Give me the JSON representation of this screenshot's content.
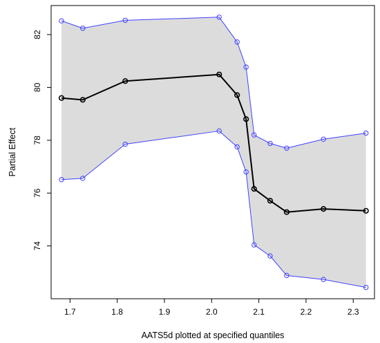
{
  "chart_data": {
    "type": "line",
    "title": "",
    "xlabel": "AATS5d plotted at specified quantiles",
    "ylabel": "Partial Effect",
    "xlim": [
      1.66,
      2.345
    ],
    "ylim": [
      72.0,
      83.1
    ],
    "x_ticks": [
      1.7,
      1.8,
      1.9,
      2.0,
      2.1,
      2.2,
      2.3
    ],
    "y_ticks": [
      74,
      76,
      78,
      80,
      82
    ],
    "x_tick_labels": [
      "1.7",
      "1.8",
      "1.9",
      "2.0",
      "2.1",
      "2.2",
      "2.3"
    ],
    "y_tick_labels": [
      "74",
      "76",
      "78",
      "80",
      "82"
    ],
    "grid": false,
    "x": [
      1.682,
      1.727,
      1.817,
      2.016,
      2.054,
      2.073,
      2.09,
      2.124,
      2.159,
      2.237,
      2.327
    ],
    "series": [
      {
        "role": "estimate",
        "color": "#000000",
        "values": [
          79.6,
          79.53,
          80.24,
          80.49,
          79.71,
          78.8,
          76.16,
          75.71,
          75.28,
          75.4,
          75.33
        ]
      },
      {
        "role": "upper",
        "color": "#4040ff",
        "values": [
          82.52,
          82.24,
          82.54,
          82.66,
          81.72,
          80.77,
          78.2,
          77.88,
          77.7,
          78.04,
          78.27
        ]
      },
      {
        "role": "lower",
        "color": "#4040ff",
        "values": [
          76.51,
          76.56,
          77.85,
          78.35,
          77.75,
          76.8,
          74.04,
          73.62,
          72.88,
          72.73,
          72.43
        ]
      }
    ],
    "band_color": "#dcdcdc"
  }
}
